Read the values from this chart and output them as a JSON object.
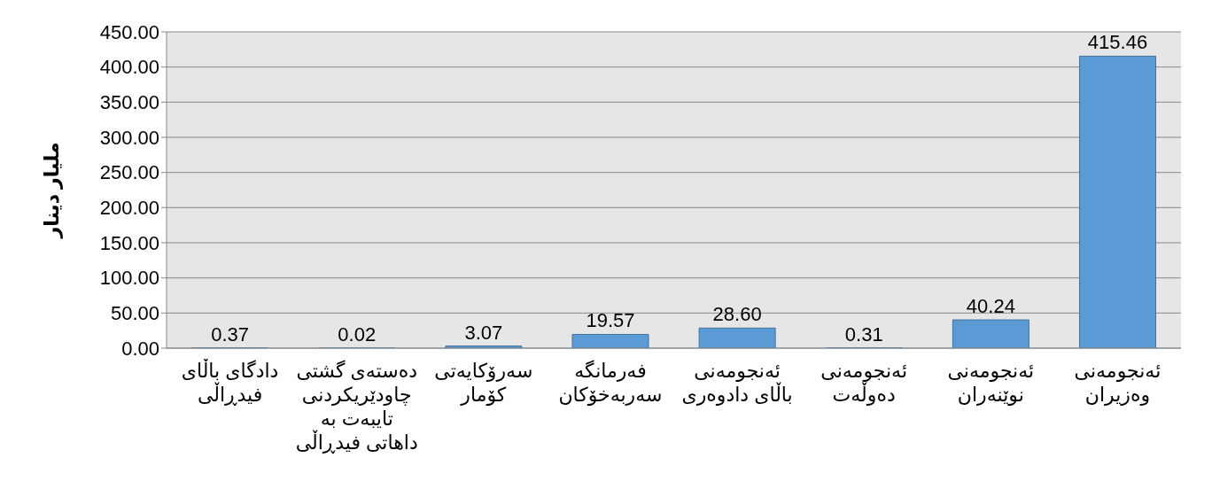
{
  "chart_data": {
    "type": "bar",
    "ylabel": "ملیار دینار",
    "categories": [
      "دادگای باڵای فیدڕاڵی",
      "دەستەی گشتی چاودێریکردنی تایبەت بە داهاتی فیدڕاڵی",
      "سەرۆکایەتی کۆمار",
      "فەرمانگە سەربەخۆکان",
      "ئەنجومەنی باڵای دادوەری",
      "ئەنجومەنی دەوڵەت",
      "ئەنجومەنی نوێنەران",
      "ئەنجومەنی وەزیران"
    ],
    "values": [
      0.37,
      0.02,
      3.07,
      19.57,
      28.6,
      0.31,
      40.24,
      415.46
    ],
    "value_labels": [
      "0.37",
      "0.02",
      "3.07",
      "19.57",
      "28.60",
      "0.31",
      "40.24",
      "415.46"
    ],
    "color": "#5b9bd5",
    "ylim": [
      0,
      450
    ],
    "yticks": [
      {
        "value": 0,
        "label": "0.00"
      },
      {
        "value": 50,
        "label": "50.00"
      },
      {
        "value": 100,
        "label": "100.00"
      },
      {
        "value": 150,
        "label": "150.00"
      },
      {
        "value": 200,
        "label": "200.00"
      },
      {
        "value": 250,
        "label": "250.00"
      },
      {
        "value": 300,
        "label": "300.00"
      },
      {
        "value": 350,
        "label": "350.00"
      },
      {
        "value": 400,
        "label": "400.00"
      },
      {
        "value": 450,
        "label": "450.00"
      }
    ],
    "grid": "y"
  }
}
